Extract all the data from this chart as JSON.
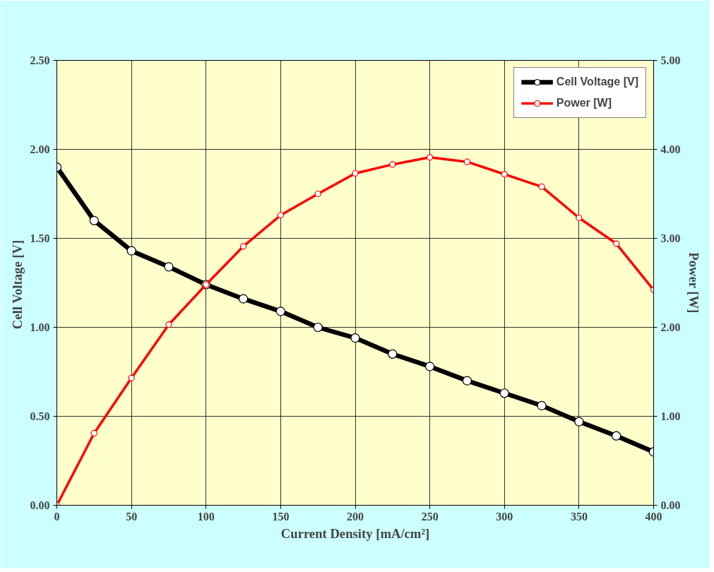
{
  "chart_data": {
    "type": "line",
    "xlabel": "Current Density [mA/cm²]",
    "ylabel": "Cell Voltage  [V]",
    "y2label": "Power [W]",
    "x": [
      0,
      25,
      50,
      75,
      100,
      125,
      150,
      175,
      200,
      225,
      250,
      275,
      300,
      325,
      350,
      375,
      400
    ],
    "series": [
      {
        "name": "Cell Voltage [V]",
        "color": "#000000",
        "values": [
          1.9,
          1.6,
          1.43,
          1.34,
          1.24,
          1.16,
          1.09,
          1.0,
          0.94,
          0.85,
          0.78,
          0.7,
          0.63,
          0.56,
          0.47,
          0.39,
          0.3
        ]
      },
      {
        "name": "Power [W]",
        "color": "#ff0000",
        "axis": "y2",
        "values": [
          0,
          0.81,
          1.43,
          2.03,
          2.48,
          2.91,
          3.26,
          3.5,
          3.73,
          3.83,
          3.91,
          3.86,
          3.72,
          3.58,
          3.23,
          2.94,
          2.42
        ]
      }
    ],
    "xlim": [
      0,
      400
    ],
    "xticks": [
      0,
      50,
      100,
      150,
      200,
      250,
      300,
      350,
      400
    ],
    "ylim": [
      0,
      2.5
    ],
    "yticks": [
      {
        "value": 0,
        "label": "0.00"
      },
      {
        "value": 0.5,
        "label": "0.50"
      },
      {
        "value": 1,
        "label": "1.00"
      },
      {
        "value": 1.5,
        "label": "1.50"
      },
      {
        "value": 2,
        "label": "2.00"
      },
      {
        "value": 2.5,
        "label": "2.50"
      }
    ],
    "y2lim": [
      0,
      5
    ],
    "y2ticks": [
      {
        "value": 0,
        "label": "0.00"
      },
      {
        "value": 1,
        "label": "1.00"
      },
      {
        "value": 2,
        "label": "2.00"
      },
      {
        "value": 3,
        "label": "3.00"
      },
      {
        "value": 4,
        "label": "4.00"
      },
      {
        "value": 5,
        "label": "5.00"
      }
    ],
    "grid": true,
    "legend": "top right",
    "marker": "circle",
    "line_style": "solid"
  }
}
